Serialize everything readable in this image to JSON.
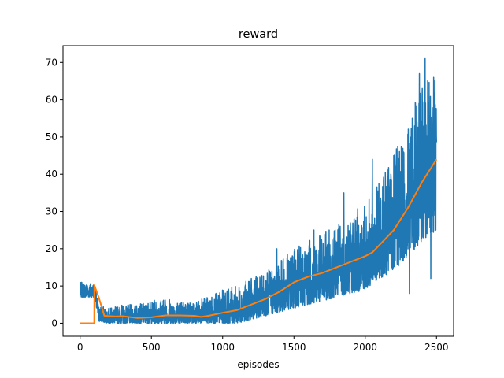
{
  "chart_data": {
    "type": "line",
    "title": "reward",
    "xlabel": "episodes",
    "ylabel": "",
    "xlim": [
      -120,
      2620
    ],
    "ylim": [
      -3.5,
      74.5
    ],
    "xticks": [
      0,
      500,
      1000,
      1500,
      2000,
      2500
    ],
    "yticks": [
      0,
      10,
      20,
      30,
      40,
      50,
      60,
      70
    ],
    "grid": false,
    "legend": "none",
    "series": [
      {
        "color": "#1f77b4",
        "x_start": 0,
        "x_end": 2500,
        "envelope": [
          {
            "x": 0,
            "low": 7,
            "high": 11
          },
          {
            "x": 100,
            "low": 7,
            "high": 11
          },
          {
            "x": 130,
            "low": 0.5,
            "high": 5
          },
          {
            "x": 200,
            "low": 0,
            "high": 4
          },
          {
            "x": 300,
            "low": 0,
            "high": 5
          },
          {
            "x": 400,
            "low": 0,
            "high": 5
          },
          {
            "x": 500,
            "low": 0,
            "high": 6
          },
          {
            "x": 600,
            "low": 0,
            "high": 7
          },
          {
            "x": 700,
            "low": 0,
            "high": 6
          },
          {
            "x": 800,
            "low": 0,
            "high": 6
          },
          {
            "x": 900,
            "low": 0,
            "high": 7
          },
          {
            "x": 1000,
            "low": 0,
            "high": 9
          },
          {
            "x": 1100,
            "low": 0,
            "high": 10
          },
          {
            "x": 1200,
            "low": 1,
            "high": 12
          },
          {
            "x": 1300,
            "low": 2,
            "high": 14
          },
          {
            "x": 1400,
            "low": 3,
            "high": 17
          },
          {
            "x": 1500,
            "low": 4,
            "high": 20
          },
          {
            "x": 1600,
            "low": 5,
            "high": 22
          },
          {
            "x": 1700,
            "low": 6,
            "high": 24
          },
          {
            "x": 1800,
            "low": 7,
            "high": 27
          },
          {
            "x": 1900,
            "low": 8,
            "high": 30
          },
          {
            "x": 2000,
            "low": 9,
            "high": 32
          },
          {
            "x": 2100,
            "low": 12,
            "high": 38
          },
          {
            "x": 2200,
            "low": 14,
            "high": 45
          },
          {
            "x": 2300,
            "low": 18,
            "high": 55
          },
          {
            "x": 2400,
            "low": 22,
            "high": 64
          },
          {
            "x": 2500,
            "low": 25,
            "high": 68
          }
        ],
        "spikes": [
          {
            "x": 1380,
            "y": 20
          },
          {
            "x": 1640,
            "y": 25
          },
          {
            "x": 1850,
            "y": 35
          },
          {
            "x": 2050,
            "y": 44
          },
          {
            "x": 2180,
            "y": 40
          },
          {
            "x": 2270,
            "y": 45
          },
          {
            "x": 2310,
            "y": 8
          },
          {
            "x": 2330,
            "y": 55
          },
          {
            "x": 2380,
            "y": 67
          },
          {
            "x": 2400,
            "y": 63
          },
          {
            "x": 2420,
            "y": 71
          },
          {
            "x": 2460,
            "y": 12
          },
          {
            "x": 2480,
            "y": 66
          },
          {
            "x": 2495,
            "y": 25
          }
        ]
      },
      {
        "color": "#ff7f0e",
        "points": [
          [
            0,
            0
          ],
          [
            99,
            0
          ],
          [
            100,
            10.2
          ],
          [
            130,
            7
          ],
          [
            170,
            2
          ],
          [
            250,
            1.8
          ],
          [
            300,
            1.9
          ],
          [
            400,
            1.4
          ],
          [
            500,
            1.6
          ],
          [
            600,
            2.1
          ],
          [
            700,
            2.1
          ],
          [
            800,
            2
          ],
          [
            850,
            1.7
          ],
          [
            900,
            2
          ],
          [
            1000,
            2.8
          ],
          [
            1100,
            3.5
          ],
          [
            1200,
            5
          ],
          [
            1300,
            6.5
          ],
          [
            1400,
            8.5
          ],
          [
            1500,
            11
          ],
          [
            1600,
            12.5
          ],
          [
            1700,
            13.5
          ],
          [
            1800,
            15
          ],
          [
            1900,
            16.5
          ],
          [
            2000,
            18
          ],
          [
            2050,
            19
          ],
          [
            2100,
            21
          ],
          [
            2150,
            23
          ],
          [
            2200,
            25
          ],
          [
            2250,
            28
          ],
          [
            2300,
            31
          ],
          [
            2350,
            34.5
          ],
          [
            2400,
            38
          ],
          [
            2450,
            41
          ],
          [
            2500,
            44
          ]
        ]
      }
    ]
  }
}
